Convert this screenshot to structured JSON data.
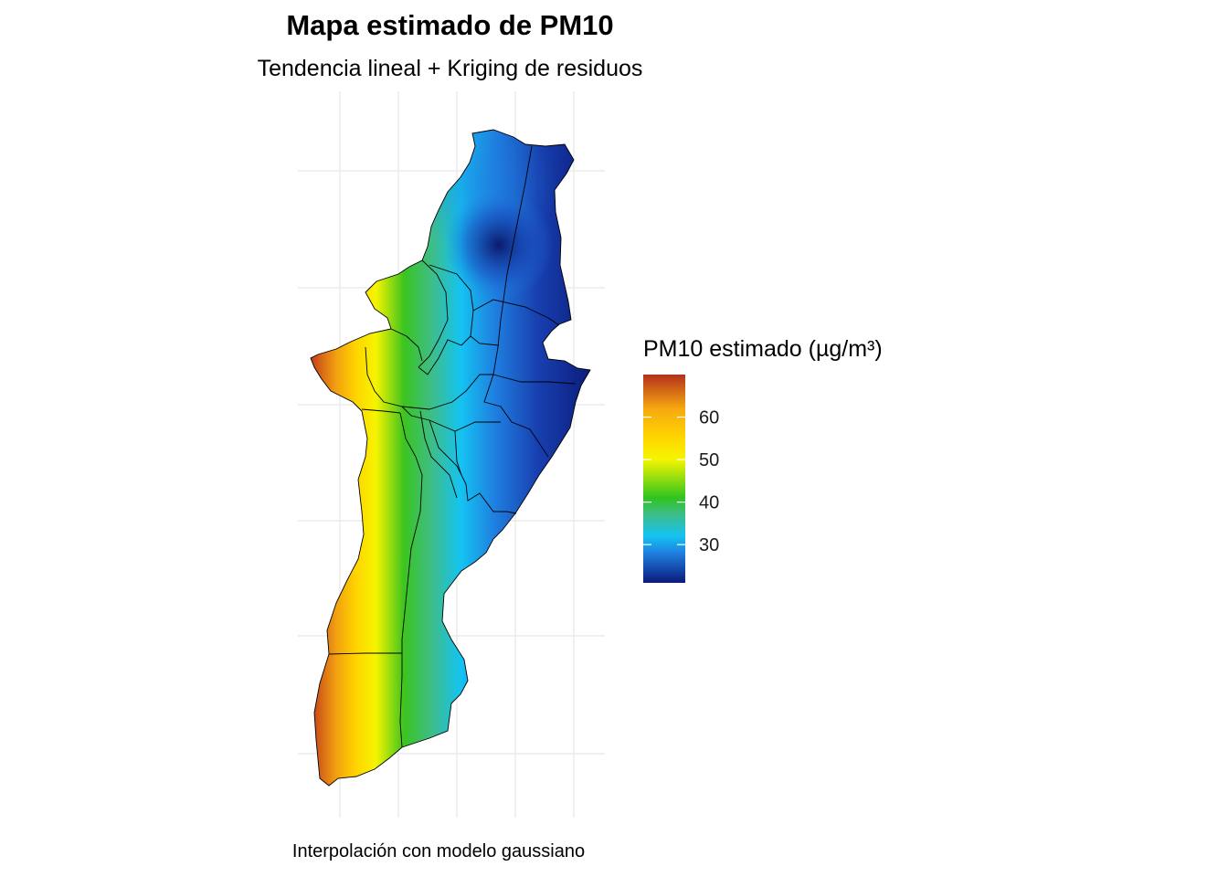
{
  "title": "Mapa estimado de PM10",
  "subtitle": "Tendencia lineal + Kriging de residuos",
  "caption": "Interpolación con modelo gaussiano",
  "legend": {
    "title": "PM10 estimado (µg/m³)",
    "min": 21,
    "max": 70,
    "ticks": [
      {
        "value": 30,
        "label": "30"
      },
      {
        "value": 40,
        "label": "40"
      },
      {
        "value": 50,
        "label": "50"
      },
      {
        "value": 60,
        "label": "60"
      }
    ],
    "color_stops": [
      {
        "value": 21,
        "color": "#0a1a7a"
      },
      {
        "value": 28,
        "color": "#1f7fe0"
      },
      {
        "value": 32,
        "color": "#14c3f2"
      },
      {
        "value": 37,
        "color": "#3dbd8a"
      },
      {
        "value": 41,
        "color": "#2fc41f"
      },
      {
        "value": 50,
        "color": "#f5f500"
      },
      {
        "value": 55,
        "color": "#ffd700"
      },
      {
        "value": 62,
        "color": "#f5a810"
      },
      {
        "value": 70,
        "color": "#b4301c"
      }
    ]
  },
  "map": {
    "gridlines": "on",
    "boundary_color": "#000000"
  }
}
